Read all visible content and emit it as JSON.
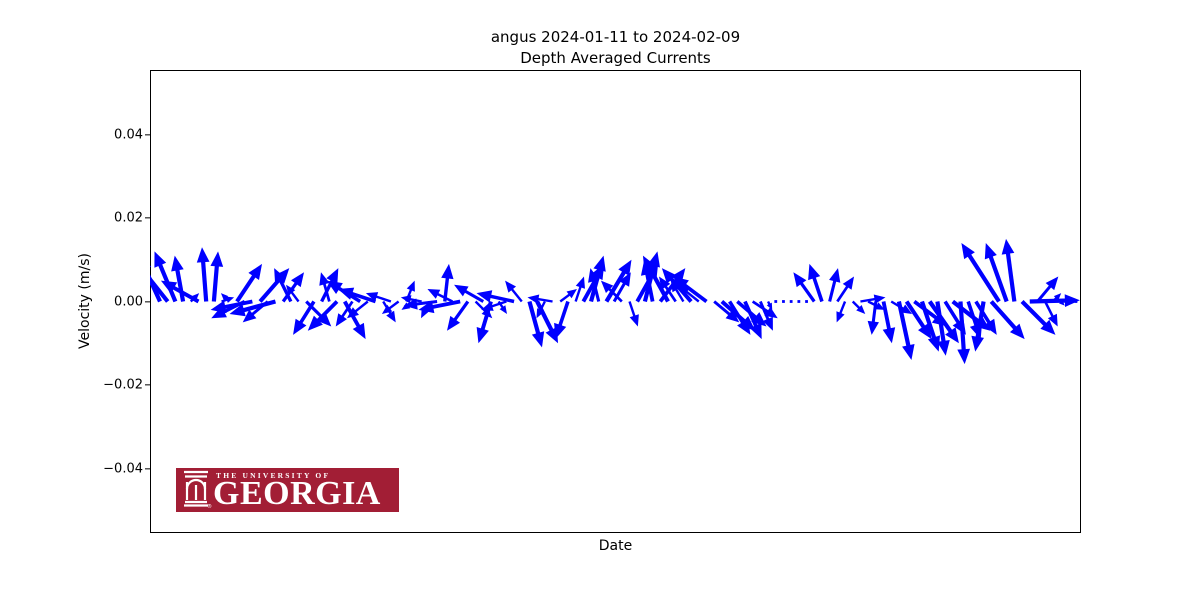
{
  "figure": {
    "title_line1": "angus 2024-01-11 to 2024-02-09",
    "title_line2": "Depth Averaged Currents",
    "background_color": "#ffffff",
    "frame_color": "#000000"
  },
  "axes": {
    "xlabel": "Date",
    "ylabel": "Velocity (m/s)",
    "ytick_labels": [
      "0.04",
      "0.02",
      "0.00",
      "−0.02",
      "−0.04"
    ],
    "ytick_values": [
      0.04,
      0.02,
      0.0,
      -0.02,
      -0.04
    ],
    "x_tick_labels_visible": false
  },
  "colors": {
    "vector": "#0000FF",
    "axis": "#000000",
    "logo_background": "#A21E35",
    "logo_text": "#FFFFFF"
  },
  "logo": {
    "line1": "THE UNIVERSITY OF",
    "line2": "GEORGIA",
    "reg_mark": "®",
    "alt": "The University of Georgia"
  },
  "chart_data": {
    "type": "quiver",
    "note": "Feather/stick plot: one velocity vector per time step drawn from the 0.00 m/s baseline; arrow components are [u, v] in m/s.",
    "title": "angus 2024-01-11 to 2024-02-09\nDepth Averaged Currents",
    "xlabel": "Date",
    "ylabel": "Velocity (m/s)",
    "station": "angus",
    "date_start": "2024-01-11",
    "date_end": "2024-02-09",
    "units": "m/s",
    "ylim": [
      -0.055,
      0.055
    ],
    "yticks": [
      -0.04,
      -0.02,
      0.0,
      0.02,
      0.04
    ],
    "grid": false,
    "legend": false,
    "n_vectors": 120,
    "arrows_format": "[u_mps, v_mps], evenly spaced in time from date_start to date_end",
    "arrows": [
      [
        -0.005,
        0.011
      ],
      [
        -0.008,
        0.01
      ],
      [
        -0.005,
        0.012
      ],
      [
        -0.002,
        0.011
      ],
      [
        0.002,
        0.002
      ],
      [
        -0.009,
        0.005
      ],
      [
        -0.001,
        0.013
      ],
      [
        0.001,
        0.012
      ],
      [
        0.003,
        0.001
      ],
      [
        -0.002,
        0.002
      ],
      [
        0.006,
        0.009
      ],
      [
        -0.008,
        -0.004
      ],
      [
        -0.01,
        -0.002
      ],
      [
        0.007,
        0.008
      ],
      [
        -0.006,
        -0.005
      ],
      [
        -0.011,
        -0.003
      ],
      [
        0.005,
        0.007
      ],
      [
        -0.004,
        0.008
      ],
      [
        -0.003,
        0.004
      ],
      [
        0.006,
        -0.006
      ],
      [
        -0.005,
        -0.008
      ],
      [
        0.004,
        0.008
      ],
      [
        -0.002,
        0.007
      ],
      [
        -0.007,
        -0.007
      ],
      [
        0.005,
        -0.009
      ],
      [
        -0.004,
        -0.006
      ],
      [
        -0.008,
        0.005
      ],
      [
        -0.005,
        -0.004
      ],
      [
        -0.009,
        0.003
      ],
      [
        0.003,
        -0.005
      ],
      [
        -0.006,
        0.002
      ],
      [
        -0.004,
        -0.003
      ],
      [
        0.002,
        0.005
      ],
      [
        -0.003,
        -0.002
      ],
      [
        -0.005,
        0.001
      ],
      [
        -0.002,
        -0.004
      ],
      [
        -0.008,
        -0.001
      ],
      [
        0.001,
        0.009
      ],
      [
        -0.006,
        0.003
      ],
      [
        -0.01,
        -0.002
      ],
      [
        -0.005,
        -0.007
      ],
      [
        0.004,
        -0.004
      ],
      [
        -0.007,
        0.004
      ],
      [
        -0.003,
        -0.01
      ],
      [
        0.002,
        -0.003
      ],
      [
        -0.006,
        -0.002
      ],
      [
        -0.009,
        0.002
      ],
      [
        -0.004,
        0.005
      ],
      [
        0.003,
        -0.011
      ],
      [
        0.005,
        -0.01
      ],
      [
        -0.002,
        -0.004
      ],
      [
        -0.006,
        0.001
      ],
      [
        0.004,
        0.003
      ],
      [
        -0.003,
        -0.009
      ],
      [
        0.002,
        0.006
      ],
      [
        0.005,
        0.009
      ],
      [
        0.003,
        0.011
      ],
      [
        -0.002,
        0.008
      ],
      [
        0.006,
        0.01
      ],
      [
        0.004,
        0.007
      ],
      [
        -0.005,
        0.005
      ],
      [
        0.002,
        -0.006
      ],
      [
        0.005,
        0.009
      ],
      [
        0.003,
        0.012
      ],
      [
        -0.002,
        0.01
      ],
      [
        0.006,
        0.008
      ],
      [
        -0.006,
        0.011
      ],
      [
        -0.004,
        0.006
      ],
      [
        -0.003,
        0.005
      ],
      [
        -0.007,
        0.008
      ],
      [
        -0.005,
        0.004
      ],
      [
        -0.008,
        0.006
      ],
      [
        0.006,
        -0.005
      ],
      [
        0.008,
        -0.007
      ],
      [
        0.005,
        -0.008
      ],
      [
        0.007,
        -0.006
      ],
      [
        0.004,
        -0.009
      ],
      [
        0.006,
        -0.004
      ],
      [
        0.003,
        -0.007
      ],
      [
        0.001,
        -0.002
      ],
      [
        0.0005,
        -0.0005
      ],
      [
        0.0003,
        0.0004
      ],
      [
        0.0005,
        -0.0003
      ],
      [
        0.0004,
        0.0003
      ],
      [
        0.0006,
        -0.0004
      ],
      [
        -0.005,
        0.007
      ],
      [
        -0.003,
        0.009
      ],
      [
        0.002,
        0.008
      ],
      [
        0.004,
        0.006
      ],
      [
        -0.002,
        -0.005
      ],
      [
        0.003,
        -0.003
      ],
      [
        0.006,
        0.001
      ],
      [
        0.004,
        -0.002
      ],
      [
        -0.001,
        -0.008
      ],
      [
        0.002,
        -0.01
      ],
      [
        0.005,
        -0.003
      ],
      [
        0.003,
        -0.014
      ],
      [
        0.006,
        -0.009
      ],
      [
        0.008,
        -0.006
      ],
      [
        0.004,
        -0.012
      ],
      [
        0.007,
        -0.01
      ],
      [
        0.002,
        -0.013
      ],
      [
        0.005,
        -0.008
      ],
      [
        0.009,
        -0.007
      ],
      [
        0.001,
        -0.015
      ],
      [
        0.003,
        -0.009
      ],
      [
        0.005,
        -0.008
      ],
      [
        -0.002,
        -0.012
      ],
      [
        0.008,
        -0.009
      ],
      [
        -0.009,
        0.014
      ],
      [
        -0.005,
        0.014
      ],
      [
        -0.002,
        0.015
      ],
      [
        0.008,
        -0.008
      ],
      [
        0.012,
        0.0003
      ],
      [
        0.005,
        0.006
      ],
      [
        0.003,
        -0.006
      ],
      [
        0.002,
        0.002
      ],
      [
        0.001,
        -0.001
      ],
      [
        0.0005,
        0.0005
      ],
      [
        0.0005,
        -0.0003
      ]
    ]
  }
}
